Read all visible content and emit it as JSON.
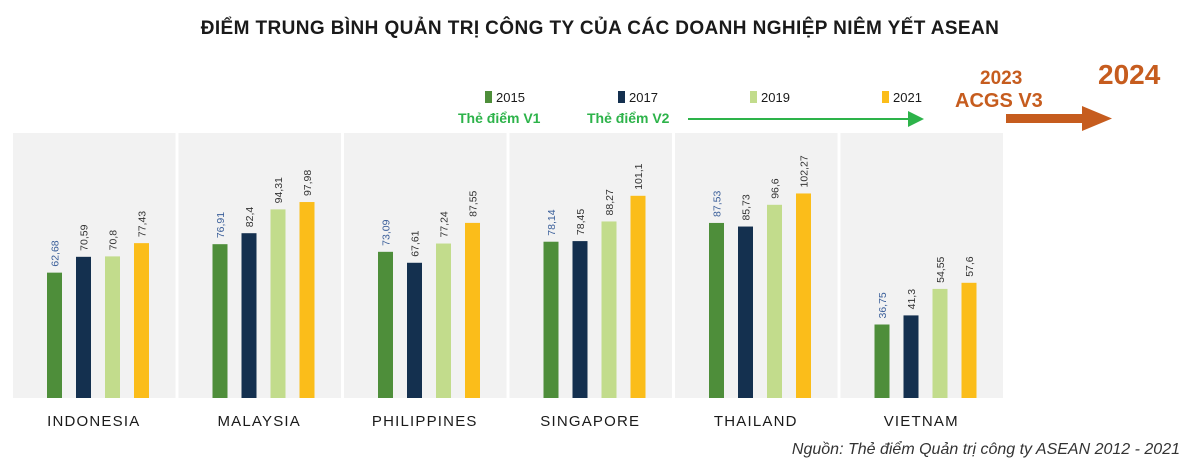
{
  "title": "ĐIỂM TRUNG BÌNH QUẢN TRỊ CÔNG TY CỦA CÁC DOANH NGHIỆP NIÊM YẾT ASEAN",
  "source": "Nguồn: Thẻ điểm Quản trị công ty ASEAN 2012 - 2021",
  "annotations": {
    "v1": "Thẻ điểm V1",
    "v2": "Thẻ điểm V2",
    "year_2023": "2023",
    "acgs_v3": "ACGS V3",
    "year_2024": "2024"
  },
  "colors": {
    "2015": "#4e8e3a",
    "2017": "#14304f",
    "2019": "#c2dc8c",
    "2021": "#fbbd1a",
    "panel_bg": "#f2f2f2",
    "panel_sep": "#ffffff",
    "annotation_green": "#2db34a",
    "arrow_orange": "#c65c1e",
    "label_2015": "#3b5f9a",
    "label_default": "#333333"
  },
  "chart_data": {
    "type": "bar",
    "categories": [
      "INDONESIA",
      "MALAYSIA",
      "PHILIPPINES",
      "SINGAPORE",
      "THAILAND",
      "VIETNAM"
    ],
    "series": [
      {
        "name": "2015",
        "values": [
          62.68,
          76.91,
          73.09,
          78.14,
          87.53,
          36.75
        ],
        "labels": [
          "62,68",
          "76,91",
          "73,09",
          "78,14",
          "87,53",
          "36,75"
        ]
      },
      {
        "name": "2017",
        "values": [
          70.59,
          82.4,
          67.61,
          78.45,
          85.73,
          41.3
        ],
        "labels": [
          "70,59",
          "82,4",
          "67,61",
          "78,45",
          "85,73",
          "41,3"
        ]
      },
      {
        "name": "2019",
        "values": [
          70.8,
          94.31,
          77.24,
          88.27,
          96.6,
          54.55
        ],
        "labels": [
          "70,8",
          "94,31",
          "77,24",
          "88,27",
          "96,6",
          "54,55"
        ]
      },
      {
        "name": "2021",
        "values": [
          77.43,
          97.98,
          87.55,
          101.1,
          102.27,
          57.6
        ],
        "labels": [
          "77,43",
          "97,98",
          "87,55",
          "101,1",
          "102,27",
          "57,6"
        ]
      }
    ],
    "ylim": [
      0,
      130
    ],
    "grid": false,
    "legend": "top-right"
  }
}
